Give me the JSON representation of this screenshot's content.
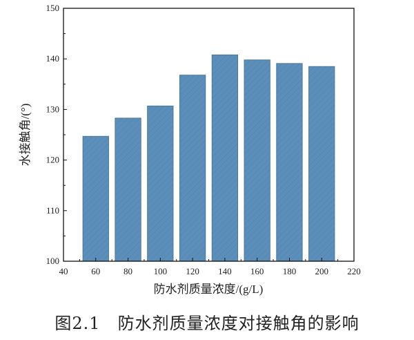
{
  "chart_data": {
    "type": "bar",
    "title": "",
    "xlabel": "防水剂质量浓度/(g/L)",
    "ylabel": "水接触角/(°)",
    "categories": [
      60,
      80,
      100,
      120,
      140,
      160,
      180,
      200
    ],
    "values": [
      124.7,
      128.3,
      130.7,
      136.8,
      140.8,
      139.8,
      139.1,
      138.5
    ],
    "xlim": [
      40,
      220
    ],
    "ylim": [
      100,
      150
    ],
    "xticks": [
      40,
      60,
      80,
      100,
      120,
      140,
      160,
      180,
      200,
      220
    ],
    "yticks": [
      100,
      110,
      120,
      130,
      140,
      150
    ],
    "grid": false,
    "bar_color": "#5b8fba",
    "bar_hatch": "diagonal"
  },
  "caption": "图2.1　防水剂质量浓度对接触角的影响"
}
